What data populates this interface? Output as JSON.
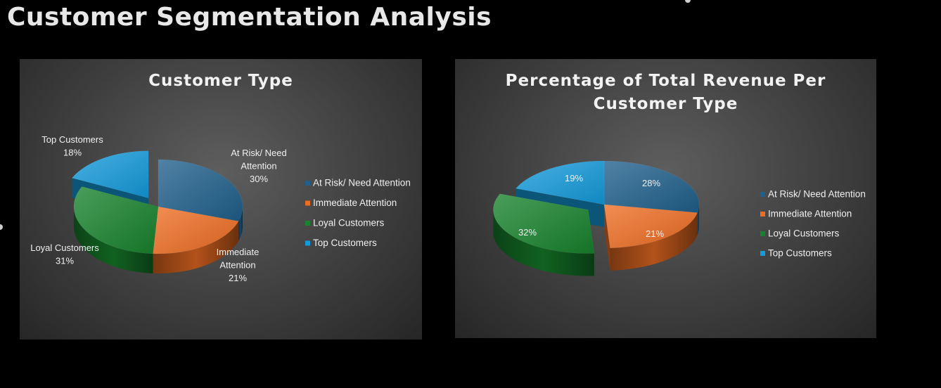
{
  "page": {
    "title": "Customer Segmentation Analysis"
  },
  "colors": {
    "at_risk": "#1f5f8b",
    "immediate": "#ee6d22",
    "loyal": "#17832c",
    "top": "#139bdb"
  },
  "chart_data": [
    {
      "type": "pie",
      "title_lines": [
        "Customer Type"
      ],
      "categories": [
        "At Risk/ Need Attention",
        "Immediate Attention",
        "Loyal Customers",
        "Top Customers"
      ],
      "values": [
        30,
        21,
        31,
        18
      ],
      "unit": "%",
      "data_labels": [
        {
          "lines": [
            "At Risk/ Need",
            "Attention",
            "30%"
          ]
        },
        {
          "lines": [
            "Immediate",
            "Attention",
            "21%"
          ]
        },
        {
          "lines": [
            "Loyal Customers",
            "31%"
          ]
        },
        {
          "lines": [
            "Top Customers",
            "18%"
          ]
        }
      ],
      "exploded": [
        "Top Customers"
      ],
      "legend": {
        "position": "right"
      },
      "three_d": true
    },
    {
      "type": "pie",
      "title_lines": [
        "Percentage of Total Revenue Per",
        "Customer Type"
      ],
      "categories": [
        "At Risk/ Need Attention",
        "Immediate Attention",
        "Loyal Customers",
        "Top Customers"
      ],
      "values": [
        28,
        21,
        32,
        19
      ],
      "unit": "%",
      "data_labels": [
        {
          "lines": [
            "28%"
          ]
        },
        {
          "lines": [
            "21%"
          ]
        },
        {
          "lines": [
            "32%"
          ]
        },
        {
          "lines": [
            "19%"
          ]
        }
      ],
      "exploded": [
        "Loyal Customers"
      ],
      "legend": {
        "position": "right"
      },
      "three_d": true
    }
  ]
}
